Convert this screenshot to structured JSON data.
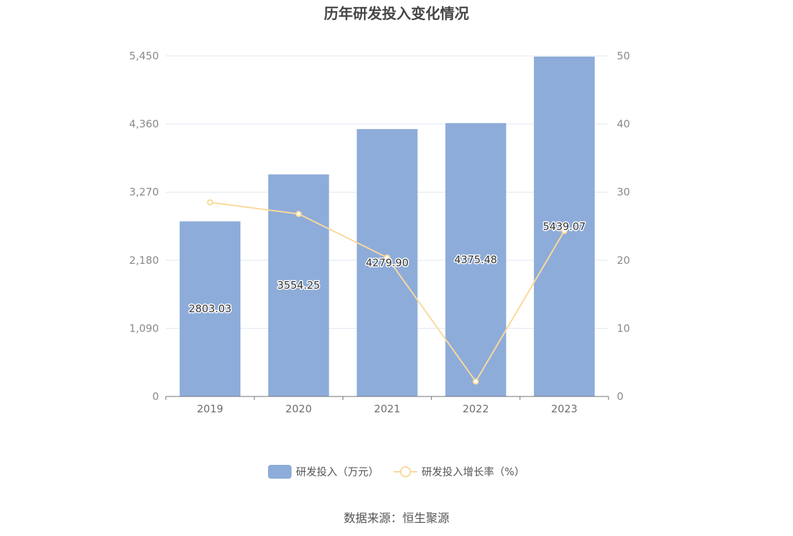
{
  "chart_data": {
    "type": "bar",
    "title": "历年研发投入变化情况",
    "categories": [
      "2019",
      "2020",
      "2021",
      "2022",
      "2023"
    ],
    "series": [
      {
        "name": "研发投入（万元）",
        "type": "bar",
        "axis": "left",
        "color": "#8eacd9",
        "values": [
          2803.03,
          3554.25,
          4279.9,
          4375.48,
          5439.07
        ],
        "value_labels": [
          "2803.03",
          "3554.25",
          "4279.90",
          "4375.48",
          "5439.07"
        ]
      },
      {
        "name": "研发投入增长率（%）",
        "type": "line",
        "axis": "right",
        "color": "#fad99a",
        "values": [
          28.5,
          26.8,
          20.4,
          2.2,
          24.3
        ]
      }
    ],
    "y_left": {
      "min": 0,
      "max": 5450,
      "ticks": [
        0,
        1090,
        2180,
        3270,
        4360,
        5450
      ],
      "tick_labels": [
        "0",
        "1,090",
        "2,180",
        "3,270",
        "4,360",
        "5,450"
      ]
    },
    "y_right": {
      "min": 0,
      "max": 50,
      "ticks": [
        0,
        10,
        20,
        30,
        40,
        50
      ],
      "tick_labels": [
        "0",
        "10",
        "20",
        "30",
        "40",
        "50"
      ]
    },
    "grid": true,
    "legend_position": "bottom"
  },
  "source": "数据来源：恒生聚源"
}
